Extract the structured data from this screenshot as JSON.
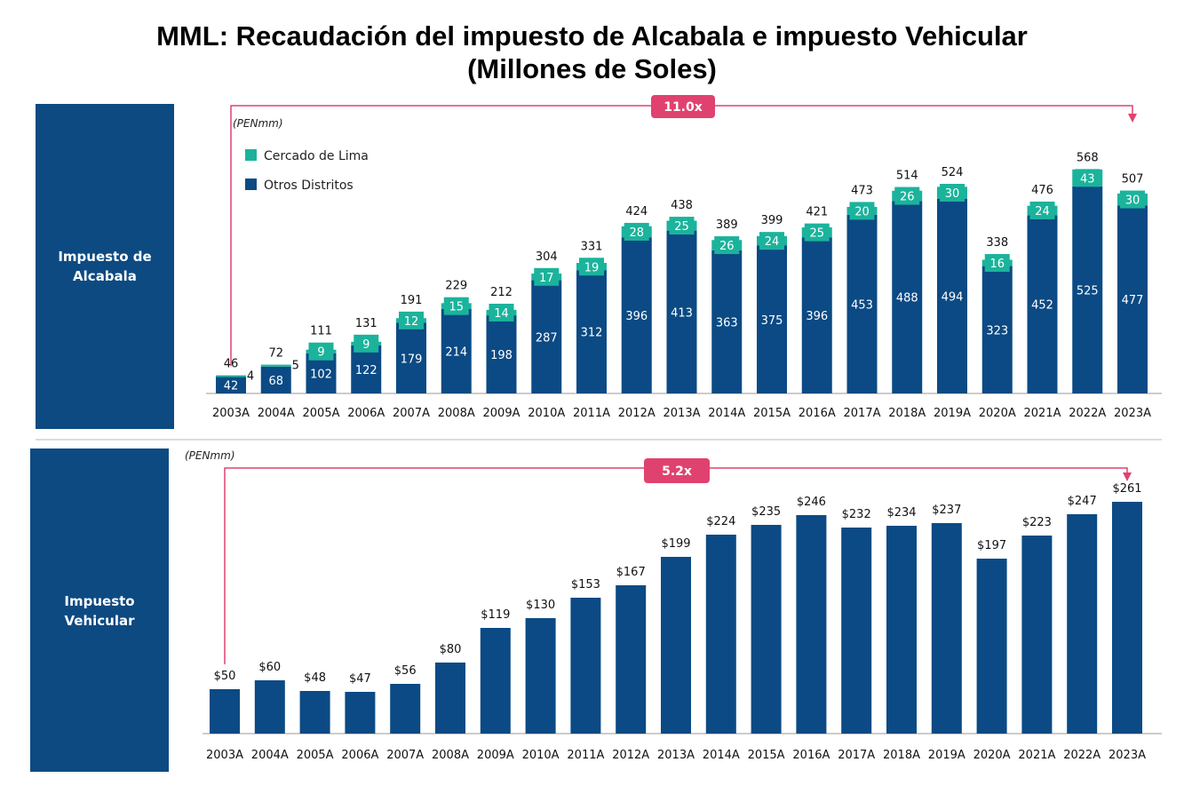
{
  "page": {
    "title_line1": "MML: Recaudación del impuesto de Alcabala e impuesto Vehicular",
    "title_line2": "(Millones de Soles)"
  },
  "colors": {
    "navy": "#0b4a84",
    "teal": "#1bb39b",
    "pink": "#e0426f",
    "panel": "#0d4a82"
  },
  "chart_data": [
    {
      "type": "bar",
      "panel_label": [
        "Impuesto de",
        "Alcabala"
      ],
      "unit": "(PENmm)",
      "multiplier": "11.0x",
      "stacked": true,
      "categories": [
        "2003A",
        "2004A",
        "2005A",
        "2006A",
        "2007A",
        "2008A",
        "2009A",
        "2010A",
        "2011A",
        "2012A",
        "2013A",
        "2014A",
        "2015A",
        "2016A",
        "2017A",
        "2018A",
        "2019A",
        "2020A",
        "2021A",
        "2022A",
        "2023A"
      ],
      "series": [
        {
          "name": "Otros Distritos",
          "values": [
            42,
            68,
            102,
            122,
            179,
            214,
            198,
            287,
            312,
            396,
            413,
            363,
            375,
            396,
            453,
            488,
            494,
            323,
            452,
            525,
            477
          ]
        },
        {
          "name": "Cercado de Lima",
          "values": [
            4,
            5,
            9,
            9,
            12,
            15,
            14,
            17,
            19,
            28,
            25,
            26,
            24,
            25,
            20,
            26,
            30,
            16,
            24,
            43,
            30
          ]
        }
      ],
      "totals": [
        46,
        72,
        111,
        131,
        191,
        229,
        212,
        304,
        331,
        424,
        438,
        389,
        399,
        421,
        473,
        514,
        524,
        338,
        476,
        568,
        507
      ],
      "legend": "top-left"
    },
    {
      "type": "bar",
      "panel_label": [
        "Impuesto",
        "Vehicular"
      ],
      "unit": "(PENmm)",
      "multiplier": "5.2x",
      "categories": [
        "2003A",
        "2004A",
        "2005A",
        "2006A",
        "2007A",
        "2008A",
        "2009A",
        "2010A",
        "2011A",
        "2012A",
        "2013A",
        "2014A",
        "2015A",
        "2016A",
        "2017A",
        "2018A",
        "2019A",
        "2020A",
        "2021A",
        "2022A",
        "2023A"
      ],
      "values": [
        50,
        60,
        48,
        47,
        56,
        80,
        119,
        130,
        153,
        167,
        199,
        224,
        235,
        246,
        232,
        234,
        237,
        197,
        223,
        247,
        261
      ],
      "value_labels": [
        "$50",
        "$60",
        "$48",
        "$47",
        "$56",
        "$80",
        "$119",
        "$130",
        "$153",
        "$167",
        "$199",
        "$224",
        "$235",
        "$246",
        "$232",
        "$234",
        "$237",
        "$197",
        "$223",
        "$247",
        "$261"
      ]
    }
  ]
}
